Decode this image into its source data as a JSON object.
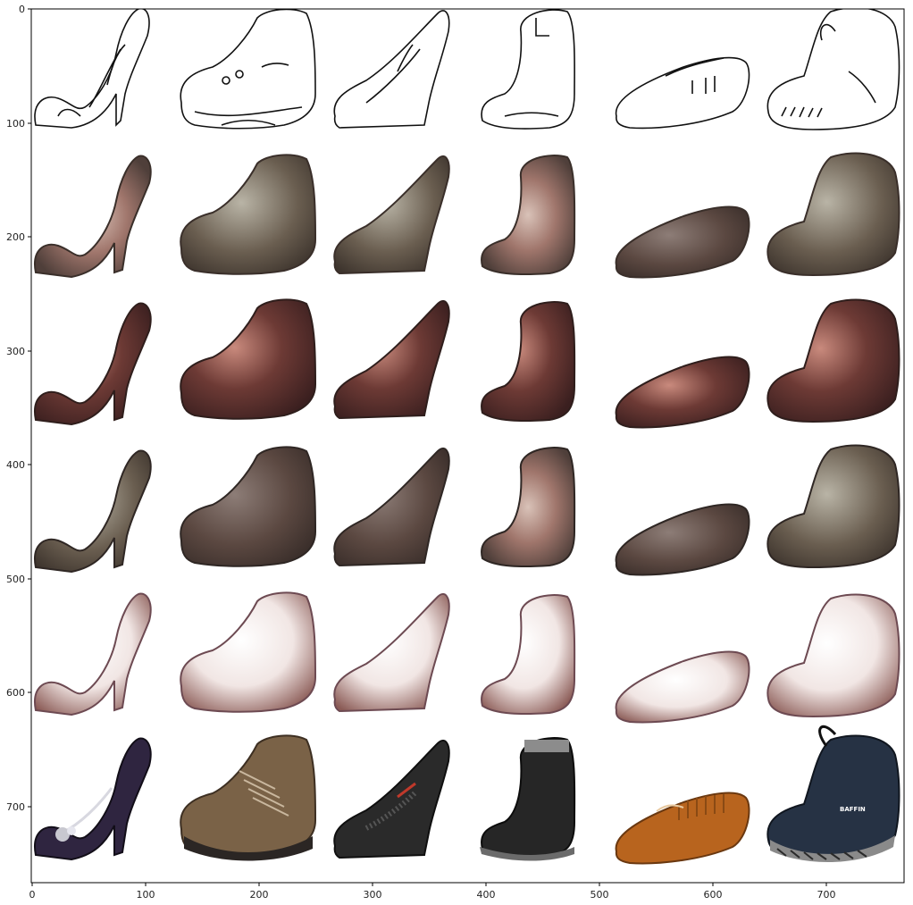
{
  "figure": {
    "kind": "image-grid",
    "rows": [
      "edge sketch",
      "generated sample 1",
      "generated sample 2",
      "generated sample 3",
      "generated sample 4",
      "real photo"
    ],
    "columns": [
      "stiletto pump",
      "hiking boot",
      "high-heel pump",
      "ankle boot",
      "moccasin",
      "puffy bootie"
    ],
    "axis": {
      "x_range": [
        0,
        768
      ],
      "y_range": [
        0,
        768
      ],
      "x_ticks": [
        "0",
        "100",
        "200",
        "300",
        "400",
        "500",
        "600",
        "700"
      ],
      "y_ticks": [
        "0",
        "100",
        "200",
        "300",
        "400",
        "500",
        "600",
        "700"
      ]
    },
    "photo_logo_text": "BAFFIN",
    "colors": {
      "sketch_line": "#111111",
      "photo_pump_purple": "#2f2540",
      "photo_boot_brown": "#7a6247",
      "photo_pump_black": "#2a2a2a",
      "photo_ankle_boot": "#262626",
      "photo_moccasin": "#b8641e",
      "photo_bootie_navy": "#263244"
    }
  }
}
